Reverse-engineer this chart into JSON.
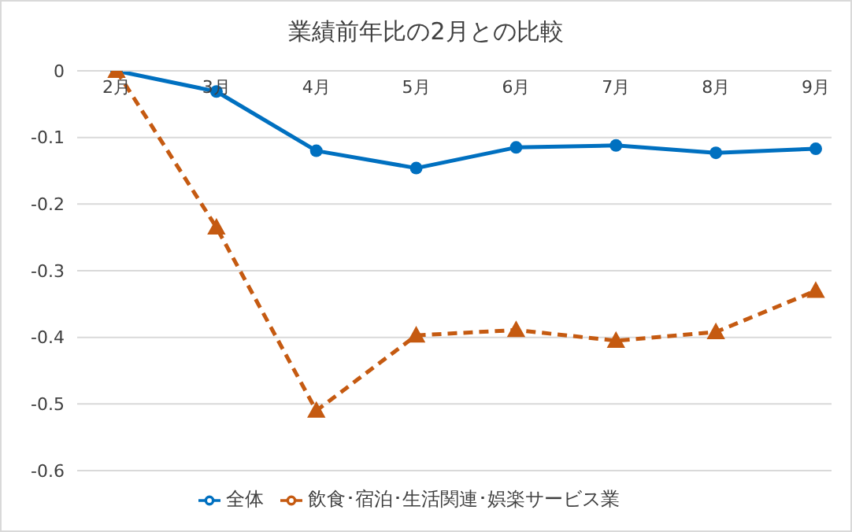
{
  "chart_data": {
    "type": "line",
    "title": "業績前年比の2月との比較",
    "categories": [
      "2月",
      "3月",
      "4月",
      "5月",
      "6月",
      "7月",
      "8月",
      "9月"
    ],
    "series": [
      {
        "name": "全体",
        "color": "#0070c0",
        "marker": "circle",
        "line_style": "solid",
        "values": [
          0,
          -0.031,
          -0.12,
          -0.146,
          -0.115,
          -0.112,
          -0.123,
          -0.117
        ]
      },
      {
        "name": "飲食･宿泊･生活関連･娯楽サービス業",
        "color": "#c55a11",
        "marker": "triangle",
        "line_style": "dashed",
        "values": [
          0,
          -0.235,
          -0.51,
          -0.397,
          -0.389,
          -0.405,
          -0.392,
          -0.33
        ]
      }
    ],
    "ylim": [
      -0.6,
      0
    ],
    "yticks": [
      0,
      -0.1,
      -0.2,
      -0.3,
      -0.4,
      -0.5,
      -0.6
    ],
    "grid": "y",
    "legend": "bottom"
  }
}
